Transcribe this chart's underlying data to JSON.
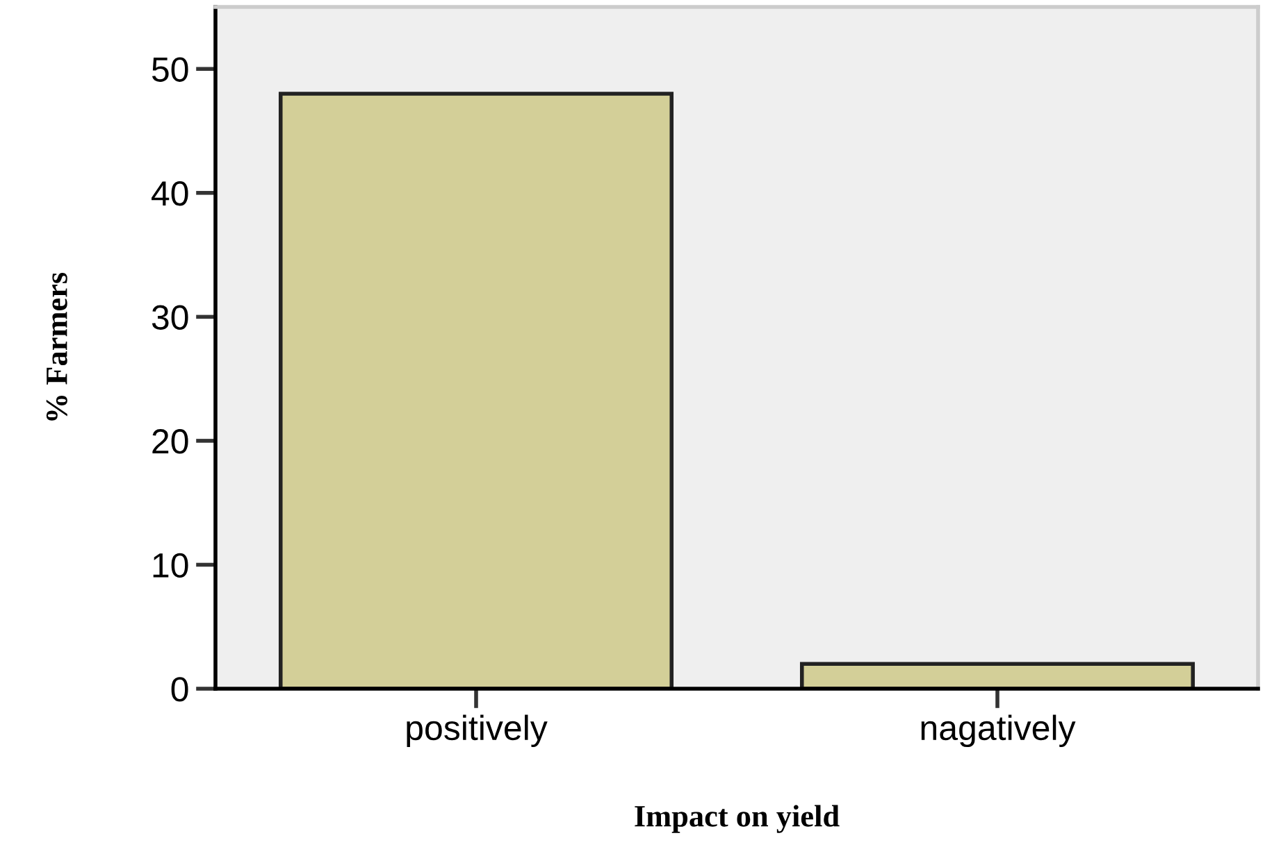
{
  "chart_data": {
    "type": "bar",
    "xlabel": "Impact on yield",
    "ylabel": "% Farmers",
    "categories": [
      "positively",
      "nagatively"
    ],
    "values": [
      48,
      2
    ],
    "color": "#d3cf98",
    "ylim": [
      0,
      55
    ],
    "yticks": [
      0,
      10,
      20,
      30,
      40,
      50
    ],
    "grid": false,
    "legend": false
  }
}
